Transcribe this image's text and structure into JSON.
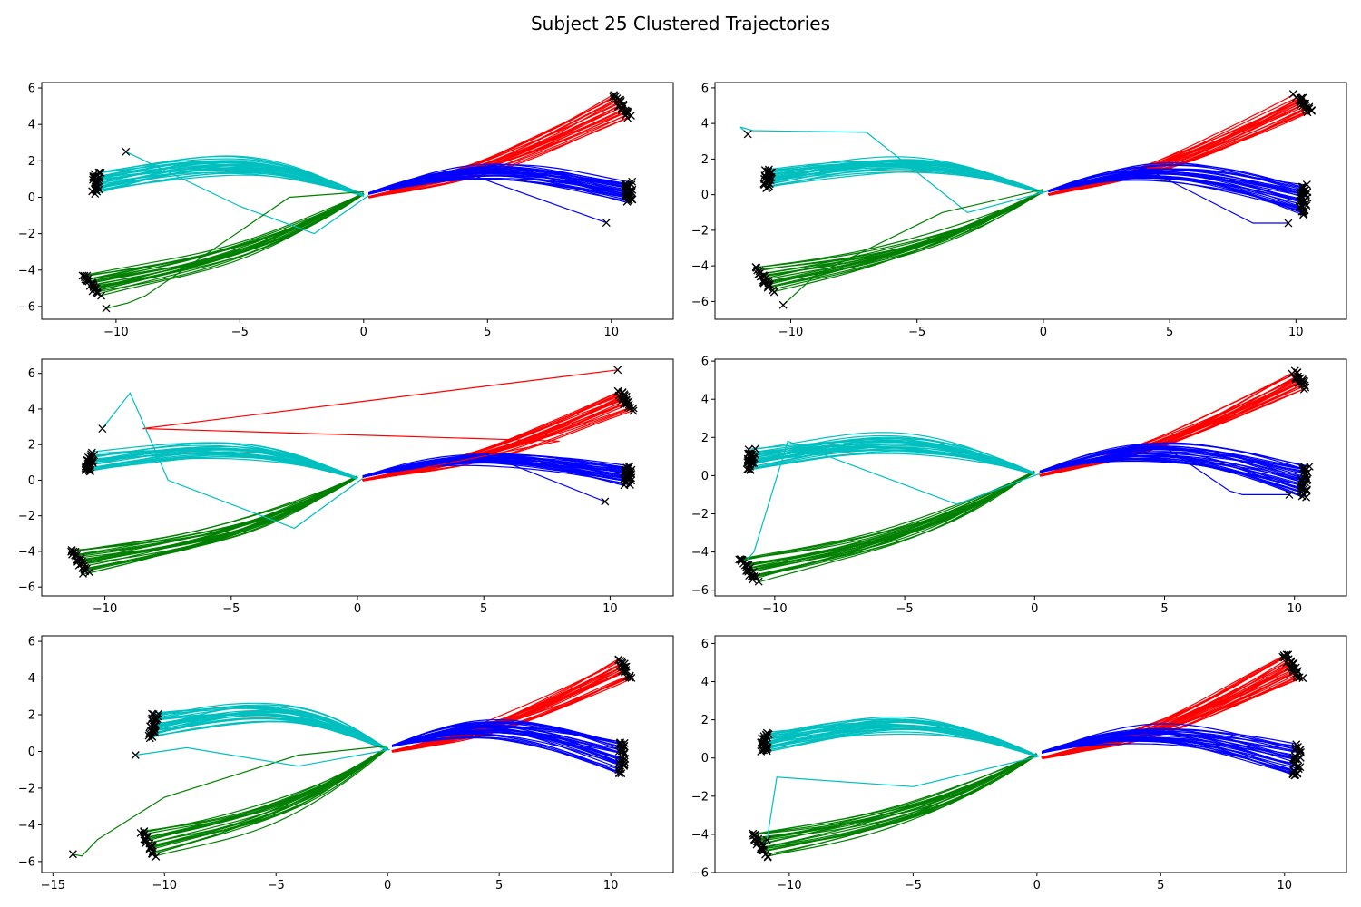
{
  "title": "Subject 25 Clustered Trajectories",
  "colors": {
    "red": "#ff0000",
    "blue": "#0000ff",
    "green": "#008000",
    "cyan": "#00bfbf",
    "marker": "#000000"
  },
  "chart_data": [
    {
      "type": "line",
      "xlim": [
        -13,
        12.5
      ],
      "ylim": [
        -6.7,
        6.3
      ],
      "xticks": [
        -10,
        -5,
        0,
        5,
        10
      ],
      "yticks": [
        -6,
        -4,
        -2,
        0,
        2,
        4,
        6
      ],
      "series": [
        {
          "color": "red",
          "start": [
            0.2,
            0.0
          ],
          "end": [
            10.4,
            5.0
          ],
          "bend": -0.6,
          "count": 24,
          "spread_end": 1.2
        },
        {
          "color": "blue",
          "start": [
            0.2,
            0.2
          ],
          "end": [
            10.7,
            0.3
          ],
          "bend": 1.3,
          "count": 30,
          "spread_end": 1.0
        },
        {
          "color": "green",
          "start": [
            0.0,
            0.2
          ],
          "end": [
            -11.0,
            -4.8
          ],
          "bend": 0.9,
          "count": 24,
          "spread_end": 1.2
        },
        {
          "color": "cyan",
          "start": [
            0.0,
            0.1
          ],
          "end": [
            -10.8,
            0.8
          ],
          "bend": -1.5,
          "count": 30,
          "spread_end": 1.0
        }
      ],
      "outlier_lines": [
        {
          "color": "cyan",
          "points": [
            [
              0.2,
              0.1
            ],
            [
              -2.0,
              -2.0
            ],
            [
              -5.0,
              -0.5
            ],
            [
              -9.6,
              2.5
            ]
          ]
        },
        {
          "color": "green",
          "points": [
            [
              0.0,
              0.3
            ],
            [
              -3.0,
              0.0
            ],
            [
              -8.8,
              -5.4
            ],
            [
              -9.5,
              -5.8
            ],
            [
              -10.4,
              -6.1
            ]
          ]
        },
        {
          "color": "blue",
          "points": [
            [
              0.3,
              0.2
            ],
            [
              4.0,
              1.4
            ],
            [
              9.8,
              -1.4
            ]
          ]
        }
      ]
    },
    {
      "type": "line",
      "xlim": [
        -13,
        12
      ],
      "ylim": [
        -7,
        6.3
      ],
      "xticks": [
        -10,
        -5,
        0,
        5,
        10
      ],
      "yticks": [
        -6,
        -4,
        -2,
        0,
        2,
        4,
        6
      ],
      "series": [
        {
          "color": "red",
          "start": [
            0.2,
            0.0
          ],
          "end": [
            10.3,
            5.1
          ],
          "bend": -0.6,
          "count": 22,
          "spread_end": 1.0
        },
        {
          "color": "blue",
          "start": [
            0.2,
            0.2
          ],
          "end": [
            10.3,
            -0.3
          ],
          "bend": 1.4,
          "count": 30,
          "spread_end": 1.6
        },
        {
          "color": "green",
          "start": [
            0.0,
            0.2
          ],
          "end": [
            -11.0,
            -4.8
          ],
          "bend": 0.9,
          "count": 22,
          "spread_end": 1.4
        },
        {
          "color": "cyan",
          "start": [
            0.0,
            0.1
          ],
          "end": [
            -10.9,
            0.9
          ],
          "bend": -1.4,
          "count": 30,
          "spread_end": 1.0
        }
      ],
      "outlier_lines": [
        {
          "color": "cyan",
          "points": [
            [
              0.2,
              0.2
            ],
            [
              -3.0,
              -1.0
            ],
            [
              -7.0,
              3.5
            ],
            [
              -11.5,
              3.6
            ],
            [
              -12.0,
              3.8
            ],
            [
              -11.7,
              3.4
            ]
          ]
        },
        {
          "color": "green",
          "points": [
            [
              0.0,
              0.3
            ],
            [
              -4.0,
              -1.0
            ],
            [
              -9.0,
              -4.5
            ],
            [
              -10.3,
              -6.2
            ]
          ]
        },
        {
          "color": "blue",
          "points": [
            [
              0.3,
              0.3
            ],
            [
              4.0,
              1.5
            ],
            [
              8.3,
              -1.6
            ],
            [
              9.7,
              -1.6
            ]
          ]
        }
      ]
    },
    {
      "type": "line",
      "xlim": [
        -12.5,
        12.5
      ],
      "ylim": [
        -6.5,
        6.8
      ],
      "xticks": [
        -10,
        -5,
        0,
        5,
        10
      ],
      "yticks": [
        -6,
        -4,
        -2,
        0,
        2,
        4,
        6
      ],
      "series": [
        {
          "color": "red",
          "start": [
            0.2,
            0.0
          ],
          "end": [
            10.6,
            4.5
          ],
          "bend": -0.6,
          "count": 24,
          "spread_end": 1.2
        },
        {
          "color": "blue",
          "start": [
            0.2,
            0.2
          ],
          "end": [
            10.7,
            0.3
          ],
          "bend": 1.1,
          "count": 28,
          "spread_end": 1.0
        },
        {
          "color": "green",
          "start": [
            0.0,
            0.2
          ],
          "end": [
            -11.0,
            -4.6
          ],
          "bend": 0.9,
          "count": 26,
          "spread_end": 1.4
        },
        {
          "color": "cyan",
          "start": [
            0.0,
            0.1
          ],
          "end": [
            -10.6,
            1.0
          ],
          "bend": -1.3,
          "count": 28,
          "spread_end": 1.0
        }
      ],
      "outlier_lines": [
        {
          "color": "red",
          "points": [
            [
              0.2,
              0.0
            ],
            [
              8.0,
              2.2
            ],
            [
              -8.5,
              2.9
            ],
            [
              10.3,
              6.2
            ]
          ]
        },
        {
          "color": "cyan",
          "points": [
            [
              0.2,
              0.1
            ],
            [
              -2.5,
              -2.7
            ],
            [
              -7.5,
              0.0
            ],
            [
              -9.0,
              4.9
            ],
            [
              -10.1,
              2.9
            ]
          ]
        },
        {
          "color": "blue",
          "points": [
            [
              0.3,
              0.2
            ],
            [
              5.0,
              1.5
            ],
            [
              9.8,
              -1.2
            ]
          ]
        }
      ]
    },
    {
      "type": "line",
      "xlim": [
        -12.3,
        12
      ],
      "ylim": [
        -6.3,
        6.1
      ],
      "xticks": [
        -10,
        -5,
        0,
        5,
        10
      ],
      "yticks": [
        -6,
        -4,
        -2,
        0,
        2,
        4,
        6
      ],
      "series": [
        {
          "color": "red",
          "start": [
            0.2,
            0.0
          ],
          "end": [
            10.2,
            5.0
          ],
          "bend": -0.6,
          "count": 22,
          "spread_end": 0.9
        },
        {
          "color": "blue",
          "start": [
            0.2,
            0.2
          ],
          "end": [
            10.4,
            -0.3
          ],
          "bend": 1.4,
          "count": 32,
          "spread_end": 1.6
        },
        {
          "color": "green",
          "start": [
            0.0,
            0.2
          ],
          "end": [
            -11.0,
            -4.9
          ],
          "bend": 0.9,
          "count": 24,
          "spread_end": 1.3
        },
        {
          "color": "cyan",
          "start": [
            0.0,
            0.1
          ],
          "end": [
            -10.9,
            0.8
          ],
          "bend": -1.4,
          "count": 30,
          "spread_end": 1.0
        }
      ],
      "outlier_lines": [
        {
          "color": "cyan",
          "points": [
            [
              0.2,
              0.1
            ],
            [
              -3.0,
              -1.5
            ],
            [
              -9.5,
              1.8
            ],
            [
              -10.8,
              -4.0
            ],
            [
              -11.2,
              -4.6
            ]
          ]
        },
        {
          "color": "blue",
          "points": [
            [
              0.3,
              0.3
            ],
            [
              5.0,
              1.5
            ],
            [
              7.5,
              -0.8
            ],
            [
              8.0,
              -1.0
            ],
            [
              9.8,
              -1.0
            ]
          ]
        }
      ]
    },
    {
      "type": "line",
      "xlim": [
        -15.5,
        12.8
      ],
      "ylim": [
        -6.6,
        6.3
      ],
      "xticks": [
        -15,
        -10,
        -5,
        0,
        5,
        10
      ],
      "yticks": [
        -6,
        -4,
        -2,
        0,
        2,
        4,
        6
      ],
      "series": [
        {
          "color": "red",
          "start": [
            0.2,
            0.0
          ],
          "end": [
            10.6,
            4.5
          ],
          "bend": -0.6,
          "count": 24,
          "spread_end": 1.2
        },
        {
          "color": "blue",
          "start": [
            0.2,
            0.3
          ],
          "end": [
            10.5,
            -0.3
          ],
          "bend": 1.4,
          "count": 32,
          "spread_end": 1.8
        },
        {
          "color": "green",
          "start": [
            0.0,
            0.2
          ],
          "end": [
            -10.7,
            -5.0
          ],
          "bend": 1.0,
          "count": 22,
          "spread_end": 1.4
        },
        {
          "color": "cyan",
          "start": [
            0.0,
            0.1
          ],
          "end": [
            -10.5,
            1.4
          ],
          "bend": -1.6,
          "count": 30,
          "spread_end": 1.3
        }
      ],
      "outlier_lines": [
        {
          "color": "green",
          "points": [
            [
              0.0,
              0.3
            ],
            [
              -4.0,
              -0.2
            ],
            [
              -10.0,
              -2.5
            ],
            [
              -13.0,
              -4.8
            ],
            [
              -13.7,
              -5.7
            ],
            [
              -14.1,
              -5.6
            ]
          ]
        },
        {
          "color": "cyan",
          "points": [
            [
              0.1,
              0.1
            ],
            [
              -4.0,
              -0.8
            ],
            [
              -9.0,
              0.2
            ],
            [
              -11.3,
              -0.2
            ]
          ]
        }
      ]
    },
    {
      "type": "line",
      "xlim": [
        -13,
        12.5
      ],
      "ylim": [
        -6.0,
        6.4
      ],
      "xticks": [
        -10,
        -5,
        0,
        5,
        10
      ],
      "yticks": [
        -6,
        -4,
        -2,
        0,
        2,
        4,
        6
      ],
      "series": [
        {
          "color": "red",
          "start": [
            0.2,
            0.0
          ],
          "end": [
            10.3,
            4.8
          ],
          "bend": -0.7,
          "count": 28,
          "spread_end": 1.4
        },
        {
          "color": "blue",
          "start": [
            0.2,
            0.3
          ],
          "end": [
            10.5,
            -0.2
          ],
          "bend": 1.3,
          "count": 32,
          "spread_end": 1.6
        },
        {
          "color": "green",
          "start": [
            0.0,
            0.2
          ],
          "end": [
            -11.2,
            -4.5
          ],
          "bend": 0.9,
          "count": 22,
          "spread_end": 1.3
        },
        {
          "color": "cyan",
          "start": [
            0.0,
            0.1
          ],
          "end": [
            -11.0,
            0.8
          ],
          "bend": -1.5,
          "count": 30,
          "spread_end": 1.0
        }
      ],
      "outlier_lines": [
        {
          "color": "cyan",
          "points": [
            [
              0.1,
              0.1
            ],
            [
              -5.0,
              -1.5
            ],
            [
              -10.5,
              -1.0
            ],
            [
              -10.9,
              -4.3
            ]
          ]
        }
      ]
    }
  ]
}
